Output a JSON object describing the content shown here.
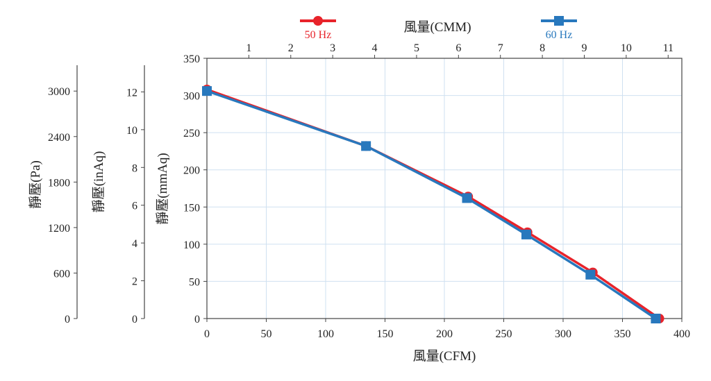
{
  "chart_data": {
    "type": "line",
    "x_cfm": {
      "label": "風量(CFM)",
      "range": [
        0,
        400
      ],
      "ticks": [
        0,
        50,
        100,
        150,
        200,
        250,
        300,
        350,
        400
      ]
    },
    "x_cmm": {
      "label": "風量(CMM)",
      "ticks": [
        1,
        2,
        3,
        4,
        5,
        6,
        7,
        8,
        9,
        10,
        11
      ]
    },
    "y_mmaq": {
      "label": "靜壓(mmAq)",
      "range": [
        0,
        350
      ],
      "ticks": [
        0,
        50,
        100,
        150,
        200,
        250,
        300,
        350
      ]
    },
    "y_inaq": {
      "label": "靜壓(inAq)",
      "ticks": [
        0,
        2,
        4,
        6,
        8,
        10,
        12
      ]
    },
    "y_pa": {
      "label": "靜壓(Pa)",
      "ticks": [
        0,
        600,
        1200,
        1800,
        2400,
        3000
      ]
    },
    "grid": true,
    "legend_position": "top",
    "series": [
      {
        "name": "50 Hz",
        "color": "#e8232a",
        "marker": "circle",
        "x": [
          0,
          134,
          220,
          270,
          325,
          381
        ],
        "y": [
          308,
          232,
          164,
          116,
          62,
          0
        ]
      },
      {
        "name": "60 Hz",
        "color": "#2878bd",
        "marker": "square",
        "x": [
          0,
          134,
          219,
          269,
          323,
          378
        ],
        "y": [
          306,
          232,
          162,
          113,
          59,
          0
        ]
      }
    ]
  }
}
